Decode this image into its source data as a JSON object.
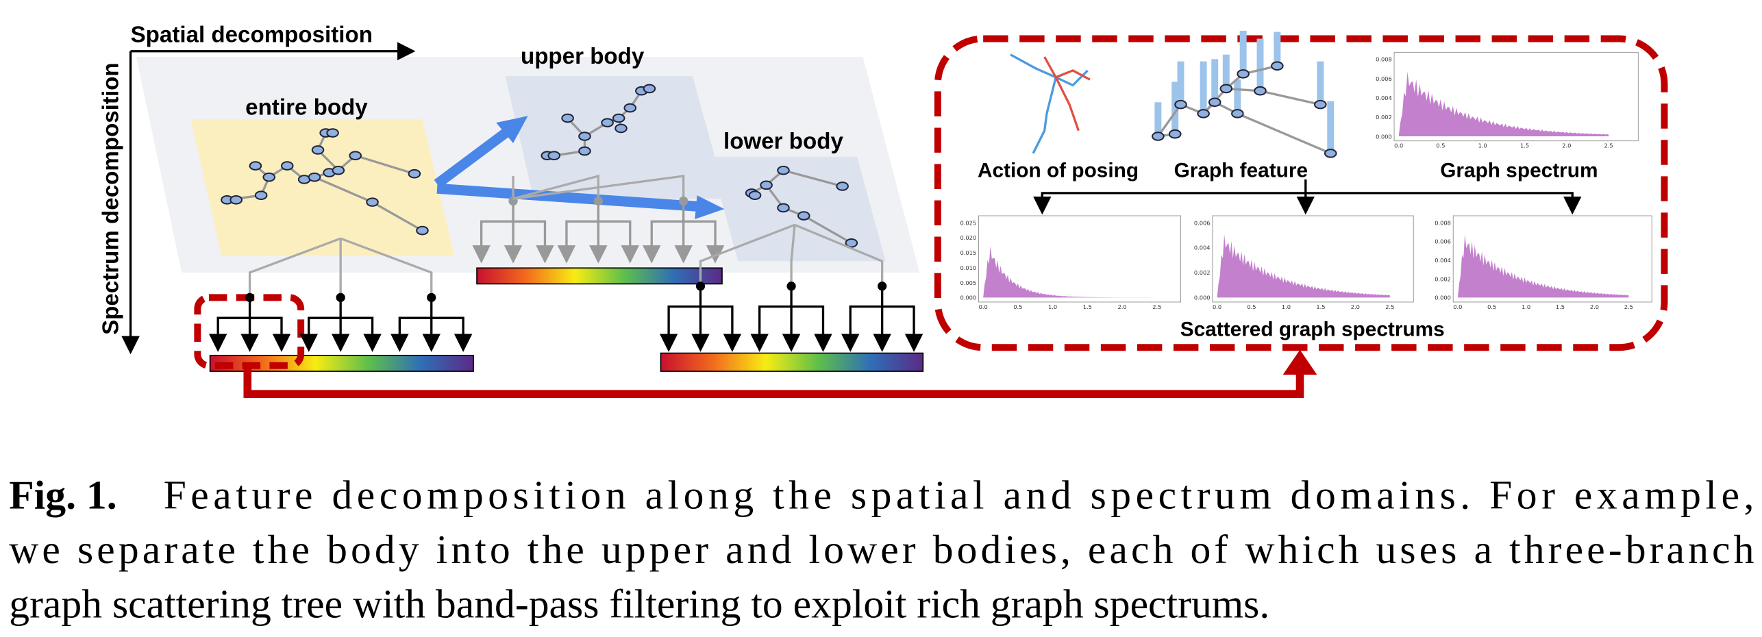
{
  "axes": {
    "spatial": "Spatial decomposition",
    "spectrum": "Spectrum decomposition"
  },
  "parts": {
    "entire": "entire body",
    "upper": "upper body",
    "lower": "lower body"
  },
  "panel": {
    "action": "Action of posing",
    "feature": "Graph feature",
    "spectrum": "Graph spectrum",
    "scattered": "Scattered graph spectrums"
  },
  "histograms": [
    {
      "yticks": [
        "0.000",
        "0.002",
        "0.004",
        "0.006",
        "0.008"
      ],
      "xticks": [
        "0.0",
        "0.5",
        "1.0",
        "1.5",
        "2.0",
        "2.5"
      ]
    },
    {
      "yticks": [
        "0.000",
        "0.005",
        "0.010",
        "0.015",
        "0.020",
        "0.025"
      ],
      "xticks": [
        "0.0",
        "0.5",
        "1.0",
        "1.5",
        "2.0",
        "2.5"
      ]
    },
    {
      "yticks": [
        "0.000",
        "0.002",
        "0.004",
        "0.006"
      ],
      "xticks": [
        "0.0",
        "0.5",
        "1.0",
        "1.5",
        "2.0",
        "2.5"
      ]
    },
    {
      "yticks": [
        "0.000",
        "0.002",
        "0.004",
        "0.006",
        "0.008"
      ],
      "xticks": [
        "0.0",
        "0.5",
        "1.0",
        "1.5",
        "2.0",
        "2.5"
      ]
    }
  ],
  "caption": {
    "label": "Fig. 1.",
    "lines": [
      "Feature decomposition along the spatial and spectrum domains. For example,",
      "we separate the body into the upper and lower bodies, each of which uses a three-branch",
      "graph scattering tree with band-pass filtering to exploit rich graph spectrums."
    ]
  }
}
